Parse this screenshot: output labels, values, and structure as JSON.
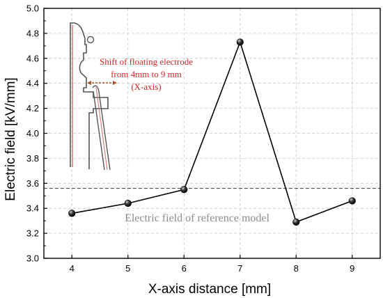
{
  "chart_data": {
    "type": "line",
    "title": "",
    "xlabel": "X-axis distance [mm]",
    "ylabel": "Electric field [kV/mm]",
    "xlim": [
      3.5,
      9.5
    ],
    "ylim": [
      3.0,
      5.0
    ],
    "xticks": [
      "4",
      "5",
      "6",
      "7",
      "8",
      "9"
    ],
    "yticks": [
      "3.0",
      "3.2",
      "3.4",
      "3.6",
      "3.8",
      "4.0",
      "4.2",
      "4.4",
      "4.6",
      "4.8",
      "5.0"
    ],
    "grid": true,
    "series": [
      {
        "x": [
          4,
          5,
          6,
          7,
          8,
          9
        ],
        "y": [
          3.36,
          3.44,
          3.55,
          4.73,
          3.29,
          3.46
        ],
        "color": "#000000"
      }
    ],
    "reference_line": {
      "y": 3.56,
      "label": "Electric field of reference model",
      "color": "#555555"
    },
    "inset_annotation": [
      "Shift of floating electrode",
      "from 4mm to 9 mm",
      "(X-axis)"
    ],
    "colors": {
      "annotation": "#cc2a2a",
      "inset_arrow": "#a0522d",
      "inset_drawing": "#555555"
    }
  }
}
